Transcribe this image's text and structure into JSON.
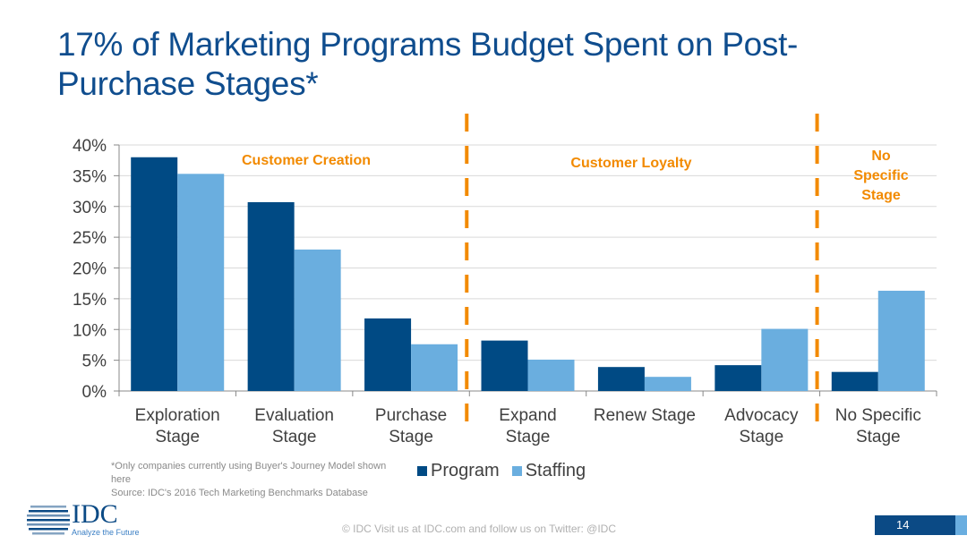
{
  "title": "17% of Marketing Programs Budget Spent on Post-Purchase Stages*",
  "chart_data": {
    "type": "bar",
    "categories": [
      "Exploration Stage",
      "Evaluation Stage",
      "Purchase Stage",
      "Expand Stage",
      "Renew Stage",
      "Advocacy Stage",
      "No Specific Stage"
    ],
    "series": [
      {
        "name": "Program",
        "color": "#004a84",
        "values": [
          38.0,
          30.7,
          11.8,
          8.2,
          3.9,
          4.2,
          3.1
        ]
      },
      {
        "name": "Staffing",
        "color": "#6aaedf",
        "values": [
          35.3,
          23.0,
          7.6,
          5.1,
          2.3,
          10.1,
          16.3
        ]
      }
    ],
    "ylim": [
      0,
      40
    ],
    "yticks": [
      "0%",
      "5%",
      "10%",
      "15%",
      "20%",
      "25%",
      "30%",
      "35%",
      "40%"
    ],
    "grid": true,
    "legend": "bottom",
    "annotations": [
      {
        "text": "Customer Creation",
        "color": "#f28a00"
      },
      {
        "text": "Customer Loyalty",
        "color": "#f28a00"
      },
      {
        "text": "No Specific Stage",
        "color": "#f28a00"
      }
    ],
    "dividers_after_category": [
      2,
      5
    ]
  },
  "footnote": {
    "line1": "*Only companies currently using Buyer's Journey Model shown here",
    "line2": "Source: IDC's 2016 Tech Marketing Benchmarks Database"
  },
  "logo": {
    "text": "IDC",
    "tagline": "Analyze the Future"
  },
  "footer": "© IDC   Visit us at IDC.com and follow us on Twitter: @IDC",
  "page_number": "14"
}
